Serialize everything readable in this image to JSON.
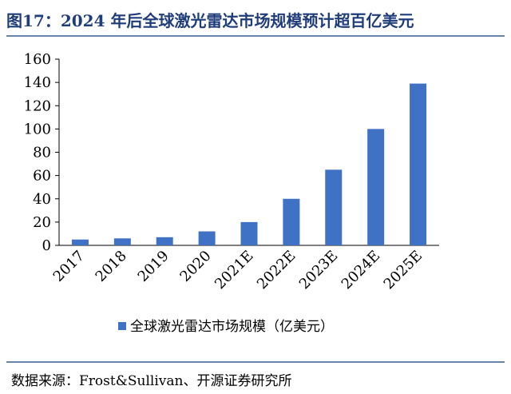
{
  "header": {
    "title": "图17：2024 年后全球激光雷达市场规模预计超百亿美元"
  },
  "chart_data": {
    "type": "bar",
    "categories": [
      "2017",
      "2018",
      "2019",
      "2020",
      "2021E",
      "2022E",
      "2023E",
      "2024E",
      "2025E"
    ],
    "series": [
      {
        "name": "全球激光雷达市场规模（亿美元）",
        "values": [
          5,
          6,
          7,
          12,
          20,
          40,
          65,
          100,
          139
        ]
      }
    ],
    "ylim": [
      0,
      160
    ],
    "yticks": [
      0,
      20,
      40,
      60,
      80,
      100,
      120,
      140,
      160
    ],
    "grid": false,
    "legend_position": "bottom",
    "bar_color": "#3f72c4"
  },
  "footer": {
    "source": "数据来源：Frost&Sullivan、开源证券研究所"
  }
}
